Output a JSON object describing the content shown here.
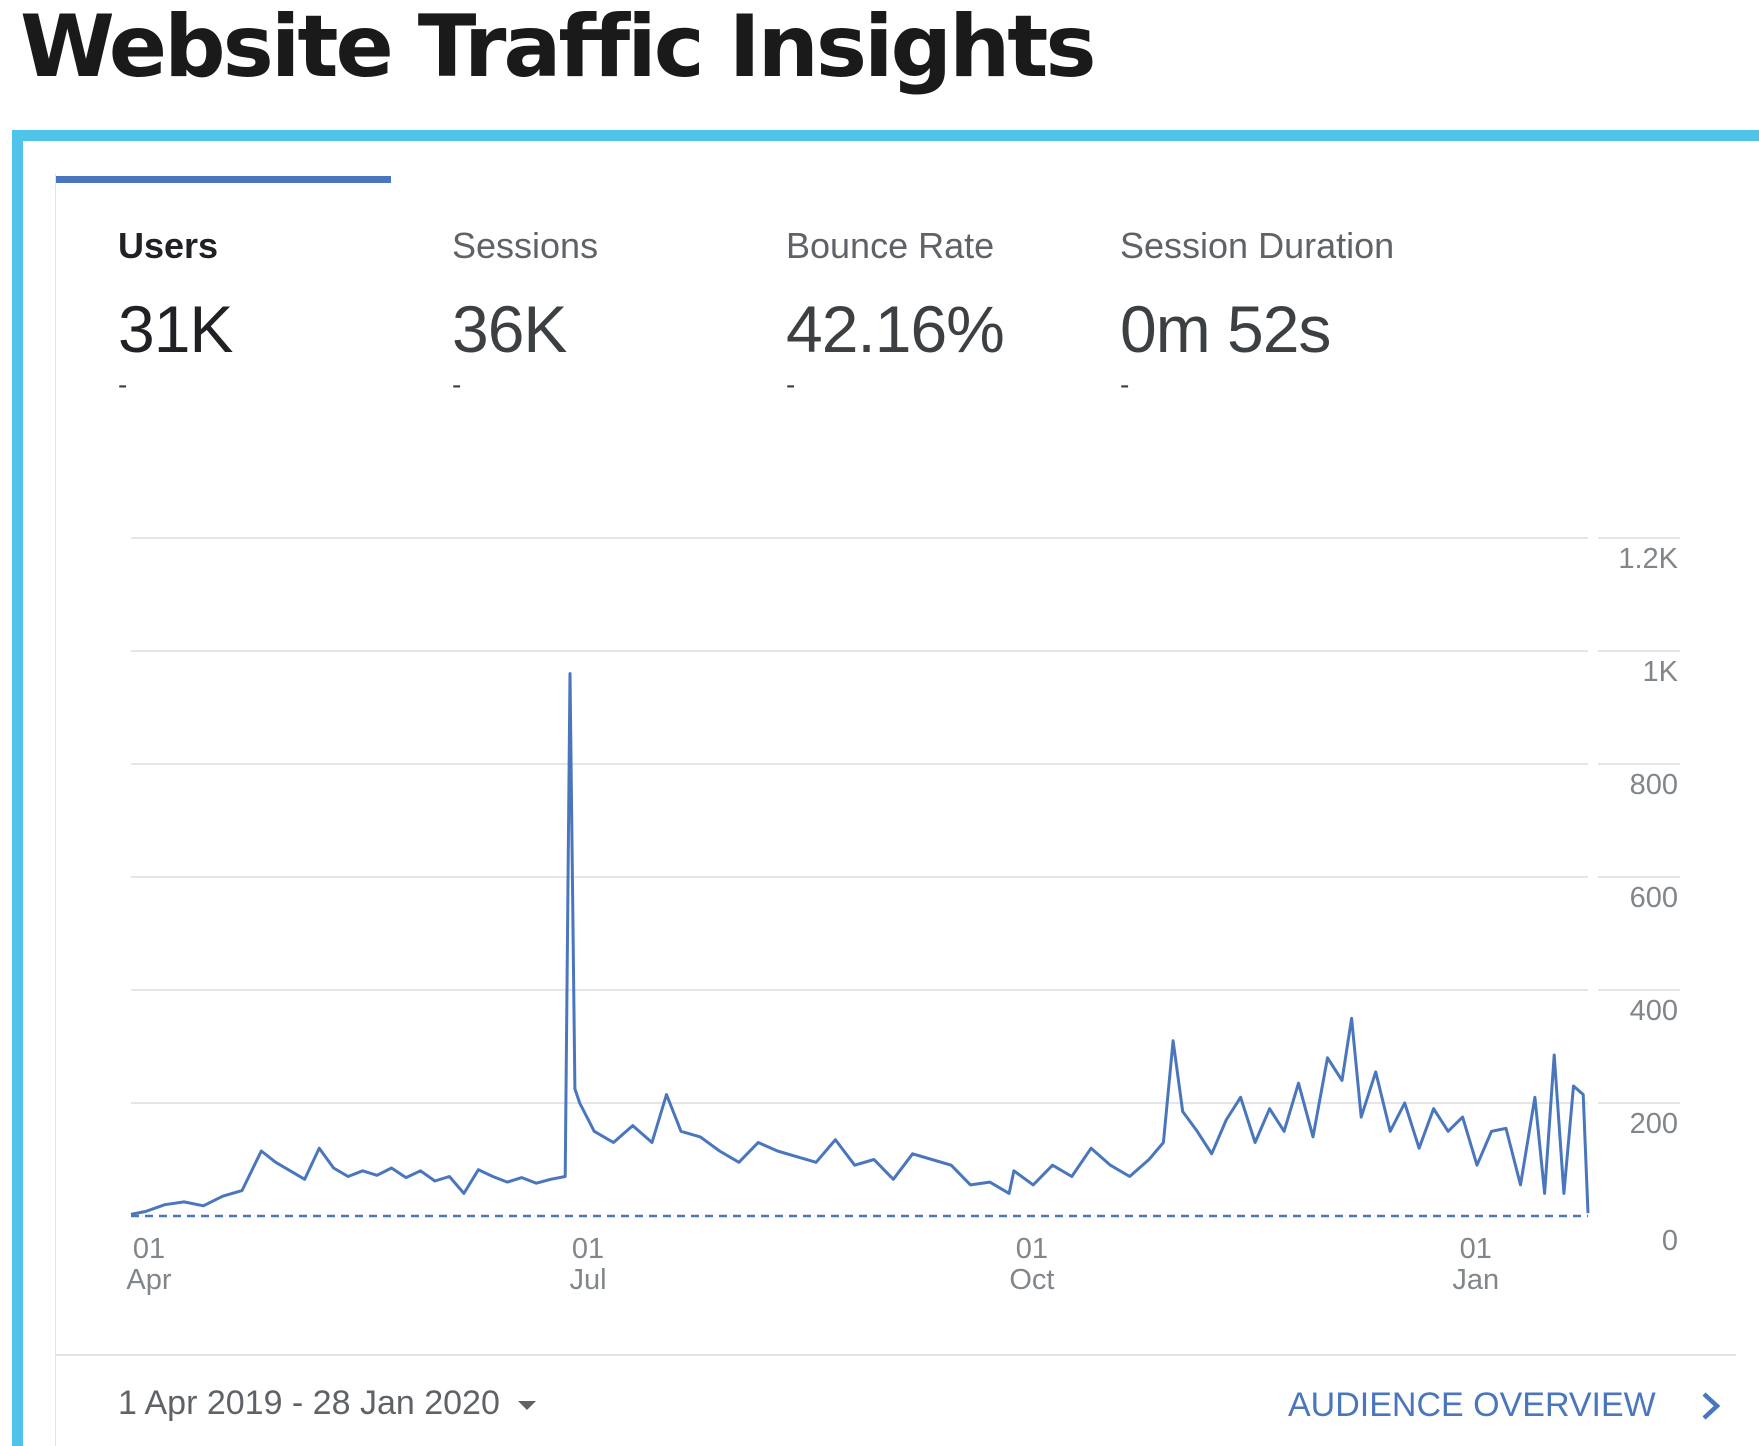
{
  "header": {
    "title": "Website Traffic Insights"
  },
  "metrics": [
    {
      "label": "Users",
      "value": "31K",
      "change": "-",
      "active": true
    },
    {
      "label": "Sessions",
      "value": "36K",
      "change": "-"
    },
    {
      "label": "Bounce Rate",
      "value": "42.16%",
      "change": "-"
    },
    {
      "label": "Session Duration",
      "value": "0m 52s",
      "change": "-"
    }
  ],
  "footer": {
    "date_range": "1 Apr 2019 - 28 Jan 2020",
    "audience_link": "AUDIENCE OVERVIEW"
  },
  "colors": {
    "accent": "#4a76bd",
    "frame": "#4fc3ea"
  },
  "chart_data": {
    "type": "line",
    "title": "",
    "xlabel": "",
    "ylabel": "",
    "x_range": [
      "2019-04-01",
      "2020-01-28"
    ],
    "ylim": [
      0,
      1200
    ],
    "y_ticks": [
      0,
      200,
      400,
      600,
      800,
      1000,
      1200
    ],
    "y_tick_labels": [
      "0",
      "200",
      "400",
      "600",
      "800",
      "1K",
      "1.2K"
    ],
    "x_ticks": [
      {
        "date": "2019-04-01",
        "day": "01",
        "month": "Apr"
      },
      {
        "date": "2019-07-01",
        "day": "01",
        "month": "Jul"
      },
      {
        "date": "2019-10-01",
        "day": "01",
        "month": "Oct"
      },
      {
        "date": "2020-01-01",
        "day": "01",
        "month": "Jan"
      }
    ],
    "grid": true,
    "legend": "none",
    "series": [
      {
        "color": "#4a76bd",
        "points": [
          [
            "2019-04-01",
            3
          ],
          [
            "2019-04-04",
            8
          ],
          [
            "2019-04-08",
            20
          ],
          [
            "2019-04-12",
            25
          ],
          [
            "2019-04-16",
            18
          ],
          [
            "2019-04-20",
            35
          ],
          [
            "2019-04-24",
            45
          ],
          [
            "2019-04-28",
            115
          ],
          [
            "2019-05-01",
            95
          ],
          [
            "2019-05-04",
            80
          ],
          [
            "2019-05-07",
            65
          ],
          [
            "2019-05-10",
            120
          ],
          [
            "2019-05-13",
            85
          ],
          [
            "2019-05-16",
            70
          ],
          [
            "2019-05-19",
            80
          ],
          [
            "2019-05-22",
            72
          ],
          [
            "2019-05-25",
            85
          ],
          [
            "2019-05-28",
            68
          ],
          [
            "2019-05-31",
            80
          ],
          [
            "2019-06-03",
            62
          ],
          [
            "2019-06-06",
            70
          ],
          [
            "2019-06-09",
            40
          ],
          [
            "2019-06-12",
            82
          ],
          [
            "2019-06-15",
            70
          ],
          [
            "2019-06-18",
            60
          ],
          [
            "2019-06-21",
            68
          ],
          [
            "2019-06-24",
            58
          ],
          [
            "2019-06-27",
            65
          ],
          [
            "2019-06-30",
            70
          ],
          [
            "2019-07-01",
            960
          ],
          [
            "2019-07-02",
            225
          ],
          [
            "2019-07-03",
            200
          ],
          [
            "2019-07-06",
            150
          ],
          [
            "2019-07-10",
            130
          ],
          [
            "2019-07-14",
            160
          ],
          [
            "2019-07-18",
            130
          ],
          [
            "2019-07-21",
            215
          ],
          [
            "2019-07-24",
            150
          ],
          [
            "2019-07-28",
            140
          ],
          [
            "2019-08-01",
            115
          ],
          [
            "2019-08-05",
            95
          ],
          [
            "2019-08-09",
            130
          ],
          [
            "2019-08-13",
            115
          ],
          [
            "2019-08-17",
            105
          ],
          [
            "2019-08-21",
            95
          ],
          [
            "2019-08-25",
            135
          ],
          [
            "2019-08-29",
            90
          ],
          [
            "2019-09-02",
            100
          ],
          [
            "2019-09-06",
            65
          ],
          [
            "2019-09-10",
            110
          ],
          [
            "2019-09-14",
            100
          ],
          [
            "2019-09-18",
            90
          ],
          [
            "2019-09-22",
            55
          ],
          [
            "2019-09-26",
            60
          ],
          [
            "2019-09-30",
            40
          ],
          [
            "2019-10-01",
            80
          ],
          [
            "2019-10-05",
            55
          ],
          [
            "2019-10-09",
            90
          ],
          [
            "2019-10-13",
            70
          ],
          [
            "2019-10-17",
            120
          ],
          [
            "2019-10-21",
            90
          ],
          [
            "2019-10-25",
            70
          ],
          [
            "2019-10-29",
            100
          ],
          [
            "2019-11-01",
            130
          ],
          [
            "2019-11-03",
            310
          ],
          [
            "2019-11-05",
            185
          ],
          [
            "2019-11-08",
            150
          ],
          [
            "2019-11-11",
            110
          ],
          [
            "2019-11-14",
            170
          ],
          [
            "2019-11-17",
            210
          ],
          [
            "2019-11-20",
            130
          ],
          [
            "2019-11-23",
            190
          ],
          [
            "2019-11-26",
            150
          ],
          [
            "2019-11-29",
            235
          ],
          [
            "2019-12-02",
            140
          ],
          [
            "2019-12-05",
            280
          ],
          [
            "2019-12-08",
            240
          ],
          [
            "2019-12-10",
            350
          ],
          [
            "2019-12-12",
            175
          ],
          [
            "2019-12-15",
            255
          ],
          [
            "2019-12-18",
            150
          ],
          [
            "2019-12-21",
            200
          ],
          [
            "2019-12-24",
            120
          ],
          [
            "2019-12-27",
            190
          ],
          [
            "2019-12-30",
            150
          ],
          [
            "2020-01-02",
            175
          ],
          [
            "2020-01-05",
            90
          ],
          [
            "2020-01-08",
            150
          ],
          [
            "2020-01-11",
            155
          ],
          [
            "2020-01-14",
            55
          ],
          [
            "2020-01-17",
            210
          ],
          [
            "2020-01-19",
            40
          ],
          [
            "2020-01-21",
            285
          ],
          [
            "2020-01-23",
            40
          ],
          [
            "2020-01-25",
            230
          ],
          [
            "2020-01-27",
            215
          ],
          [
            "2020-01-28",
            5
          ]
        ]
      }
    ]
  }
}
